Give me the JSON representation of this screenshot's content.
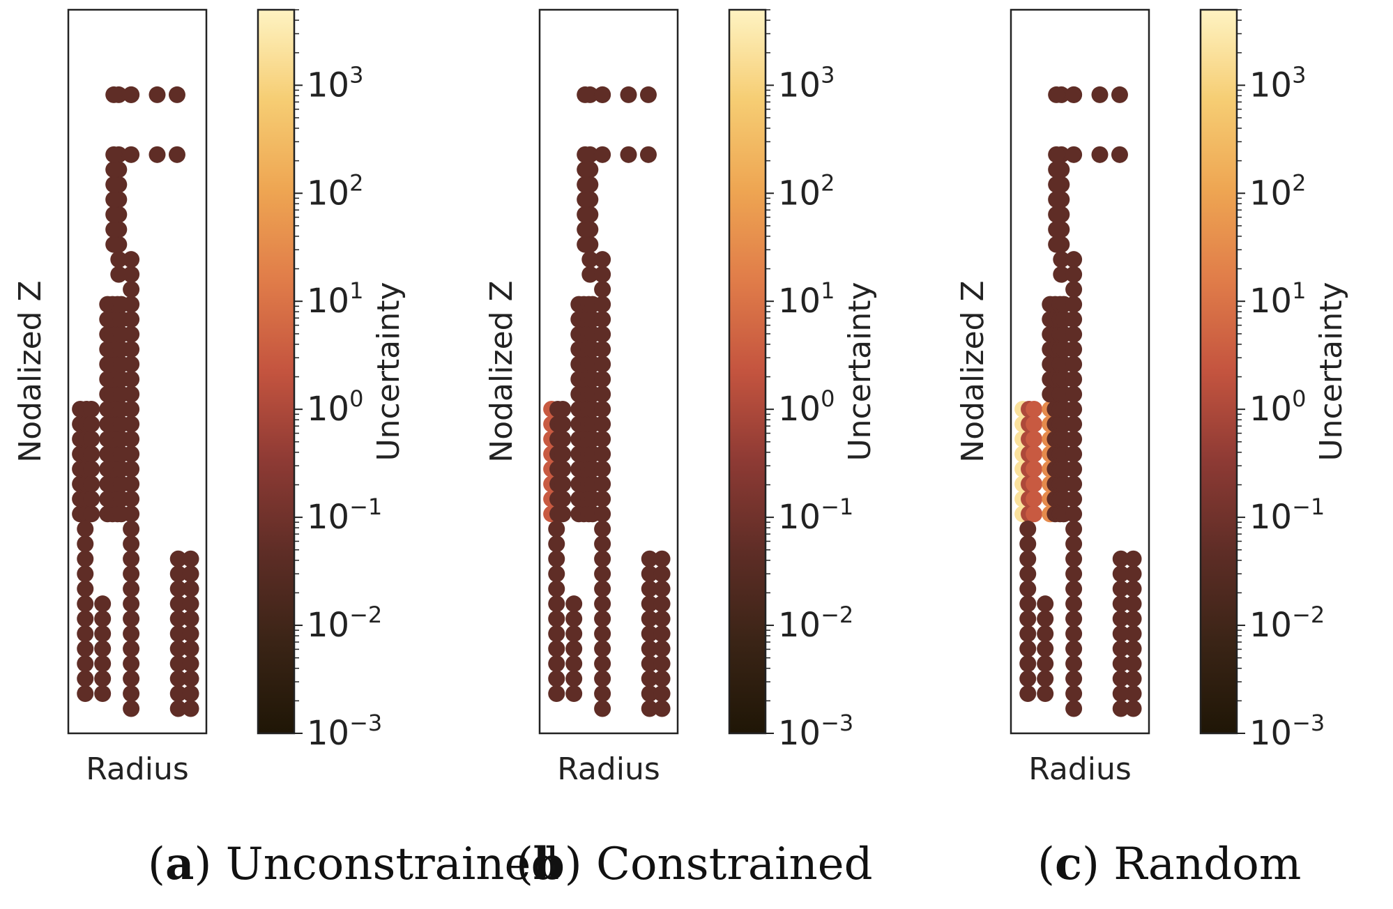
{
  "chart_data": [
    {
      "id": "a",
      "type": "scatter",
      "caption_letter": "a",
      "caption_text": "Unconstrained",
      "xlabel": "Radius",
      "ylabel": "Nodalized Z",
      "colorbar_label": "Uncertainty",
      "colorbar_scale": "log",
      "colorbar_range": [
        0.001,
        5000
      ],
      "colorbar_ticks": [
        {
          "exp": "3",
          "value": 1000
        },
        {
          "exp": "2",
          "value": 100
        },
        {
          "exp": "1",
          "value": 10
        },
        {
          "exp": "0",
          "value": 1
        },
        {
          "exp": "−1",
          "value": 0.1
        },
        {
          "exp": "−2",
          "value": 0.01
        },
        {
          "exp": "−3",
          "value": 0.001
        }
      ],
      "tick_base": "10",
      "colormap": [
        "#1f1606",
        "#3a2416",
        "#5e2d26",
        "#8d3a34",
        "#c4543f",
        "#e07c49",
        "#eea552",
        "#f6cd73",
        "#fef3c2"
      ],
      "hot_regions": []
    },
    {
      "id": "b",
      "type": "scatter",
      "caption_letter": "b",
      "caption_text": "Constrained",
      "xlabel": "Radius",
      "ylabel": "Nodalized Z",
      "colorbar_label": "Uncertainty",
      "colorbar_scale": "log",
      "colorbar_range": [
        0.001,
        5000
      ],
      "colorbar_ticks": [
        {
          "exp": "3",
          "value": 1000
        },
        {
          "exp": "2",
          "value": 100
        },
        {
          "exp": "1",
          "value": 10
        },
        {
          "exp": "0",
          "value": 1
        },
        {
          "exp": "−1",
          "value": 0.1
        },
        {
          "exp": "−2",
          "value": 0.01
        },
        {
          "exp": "−3",
          "value": 0.001
        }
      ],
      "tick_base": "10",
      "colormap": [
        "#1f1606",
        "#3a2416",
        "#5e2d26",
        "#8d3a34",
        "#c4543f",
        "#e07c49",
        "#eea552",
        "#f6cd73",
        "#fef3c2"
      ],
      "hot_regions": [
        {
          "col": 0,
          "from": 14,
          "to": 21,
          "uncertainty": 3
        }
      ]
    },
    {
      "id": "c",
      "type": "scatter",
      "caption_letter": "c",
      "caption_text": "Random",
      "xlabel": "Radius",
      "ylabel": "Nodalized Z",
      "colorbar_label": "Uncertainty",
      "colorbar_scale": "log",
      "colorbar_range": [
        0.001,
        5000
      ],
      "colorbar_ticks": [
        {
          "exp": "3",
          "value": 1000
        },
        {
          "exp": "2",
          "value": 100
        },
        {
          "exp": "1",
          "value": 10
        },
        {
          "exp": "0",
          "value": 1
        },
        {
          "exp": "−1",
          "value": 0.1
        },
        {
          "exp": "−2",
          "value": 0.01
        },
        {
          "exp": "−3",
          "value": 0.001
        }
      ],
      "tick_base": "10",
      "colormap": [
        "#1f1606",
        "#3a2416",
        "#5e2d26",
        "#8d3a34",
        "#c4543f",
        "#e07c49",
        "#eea552",
        "#f6cd73",
        "#fef3c2"
      ],
      "hot_regions": [
        {
          "col": 0,
          "from": 14,
          "to": 21,
          "uncertainty": 2000
        },
        {
          "col": 1,
          "from": 14,
          "to": 21,
          "uncertainty": 1
        },
        {
          "col": 2,
          "from": 14,
          "to": 21,
          "uncertainty": 3
        },
        {
          "col": 3,
          "from": 14,
          "to": 21,
          "uncertainty": 8
        },
        {
          "col": 4,
          "from": 14,
          "to": 21,
          "uncertainty": 5
        },
        {
          "col": 5,
          "from": 14,
          "to": 21,
          "uncertainty": 30
        },
        {
          "col": 2,
          "from": 23,
          "to": 24,
          "uncertainty": 0.05
        }
      ]
    }
  ],
  "point_layout": {
    "x_min": 0,
    "x_max": 10,
    "y_min": 0,
    "y_max": 46,
    "base_uncertainty": 0.05,
    "columns": [
      {
        "x": 0.4,
        "ys": [
          14,
          15,
          16,
          17,
          18,
          19,
          20,
          21
        ]
      },
      {
        "x": 0.9,
        "ys": [
          14,
          15,
          16,
          17,
          18,
          19,
          20,
          21
        ]
      },
      {
        "x": 1.3,
        "ys": [
          14,
          15,
          16,
          17,
          18,
          19,
          20,
          21
        ]
      },
      {
        "x": 0.8,
        "ys": [
          2,
          3,
          4,
          5,
          6,
          7,
          8,
          9,
          10,
          11,
          12,
          13
        ]
      },
      {
        "x": 2.2,
        "ys": [
          2,
          3,
          4,
          5,
          6,
          7,
          8
        ]
      },
      {
        "x": 2.6,
        "ys": [
          14,
          15,
          16,
          17,
          18,
          19,
          20,
          21,
          22,
          23,
          24,
          25,
          26,
          27,
          28
        ]
      },
      {
        "x": 3.0,
        "ys": [
          14,
          15,
          16,
          17,
          18,
          19,
          20,
          21,
          22,
          23,
          24,
          25,
          26,
          27,
          28
        ]
      },
      {
        "x": 3.4,
        "ys": [
          14,
          15,
          16,
          17,
          18,
          19,
          20,
          21,
          22,
          23,
          24,
          25,
          26,
          27,
          28
        ]
      },
      {
        "x": 3.7,
        "ys": [
          14,
          15,
          16,
          17,
          18,
          19,
          20,
          21,
          22,
          23,
          24,
          25,
          26,
          27,
          28
        ]
      },
      {
        "x": 3.5,
        "ys": [
          30,
          31,
          32,
          33,
          34,
          35,
          36,
          37,
          38,
          42
        ]
      },
      {
        "x": 3.1,
        "ys": [
          32,
          33,
          34,
          35,
          36,
          37,
          38,
          42
        ]
      },
      {
        "x": 4.5,
        "ys": [
          1,
          2,
          3,
          4,
          5,
          6,
          7,
          8,
          9,
          10,
          11,
          12,
          13,
          14,
          15,
          16,
          17,
          18,
          19,
          20,
          21,
          22,
          23,
          24,
          25,
          26,
          27,
          28,
          29,
          30,
          31,
          42
        ]
      },
      {
        "x": 4.5,
        "ys": [
          38,
          42
        ]
      },
      {
        "x": 6.6,
        "ys": [
          38,
          42
        ]
      },
      {
        "x": 8.2,
        "ys": [
          38,
          42
        ]
      },
      {
        "x": 8.3,
        "ys": [
          1,
          2,
          3,
          4,
          5,
          6,
          7,
          8,
          9,
          10,
          11
        ]
      },
      {
        "x": 9.3,
        "ys": [
          1,
          2,
          3,
          4,
          5,
          6,
          7,
          8,
          9,
          10,
          11
        ]
      }
    ]
  }
}
